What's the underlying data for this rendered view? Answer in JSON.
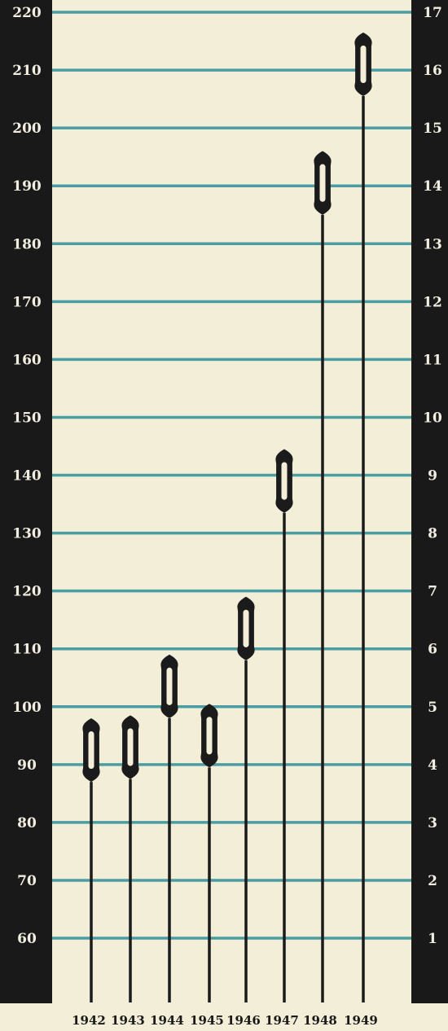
{
  "chart_data": {
    "type": "bar",
    "categories": [
      "1942",
      "1943",
      "1944",
      "1945",
      "1946",
      "1947",
      "1948",
      "1949"
    ],
    "series": [
      {
        "values": [
          92.5,
          93,
          103.5,
          95,
          113.5,
          139,
          190.5,
          211
        ]
      }
    ],
    "left_axis": {
      "ticks": [
        "60",
        "70",
        "80",
        "90",
        "100",
        "110",
        "120",
        "130",
        "140",
        "150",
        "160",
        "170",
        "180",
        "190",
        "200",
        "210",
        "220"
      ]
    },
    "right_axis": {
      "ticks": [
        "1",
        "2",
        "3",
        "4",
        "5",
        "6",
        "7",
        "8",
        "9",
        "10",
        "11",
        "12",
        "13",
        "14",
        "15",
        "16",
        "17"
      ]
    },
    "ylim": [
      60,
      220
    ],
    "grid": true,
    "colors": {
      "background": "#f3eed7",
      "band": "#191919",
      "grid": "#4a9ea3",
      "mark": "#1b1b1b"
    }
  }
}
